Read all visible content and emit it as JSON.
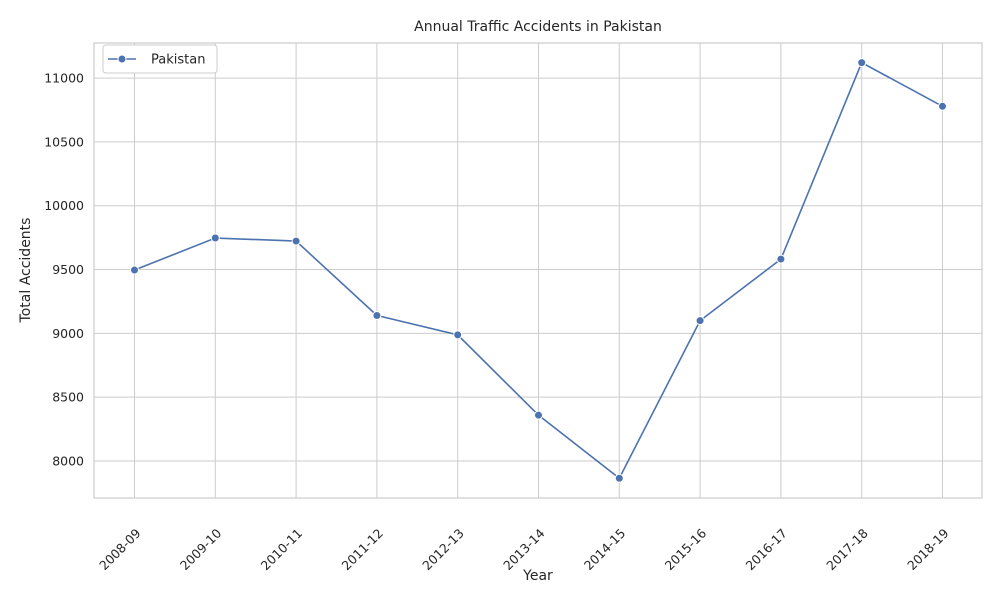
{
  "chart_data": {
    "type": "line",
    "title": "Annual Traffic Accidents in Pakistan",
    "xlabel": "Year",
    "ylabel": "Total Accidents",
    "categories": [
      "2008-09",
      "2009-10",
      "2010-11",
      "2011-12",
      "2012-13",
      "2013-14",
      "2014-15",
      "2015-16",
      "2016-17",
      "2017-18",
      "2018-19"
    ],
    "series": [
      {
        "name": "Pakistan",
        "color": "#4c72b0",
        "values": [
          9496,
          9747,
          9723,
          9140,
          8988,
          8359,
          7865,
          9100,
          9582,
          11121,
          10779
        ]
      }
    ],
    "yticks": [
      8000,
      8500,
      9000,
      9500,
      10000,
      10500,
      11000
    ],
    "ylim": [
      7710,
      11275
    ],
    "grid": true,
    "legend": "top-left"
  }
}
